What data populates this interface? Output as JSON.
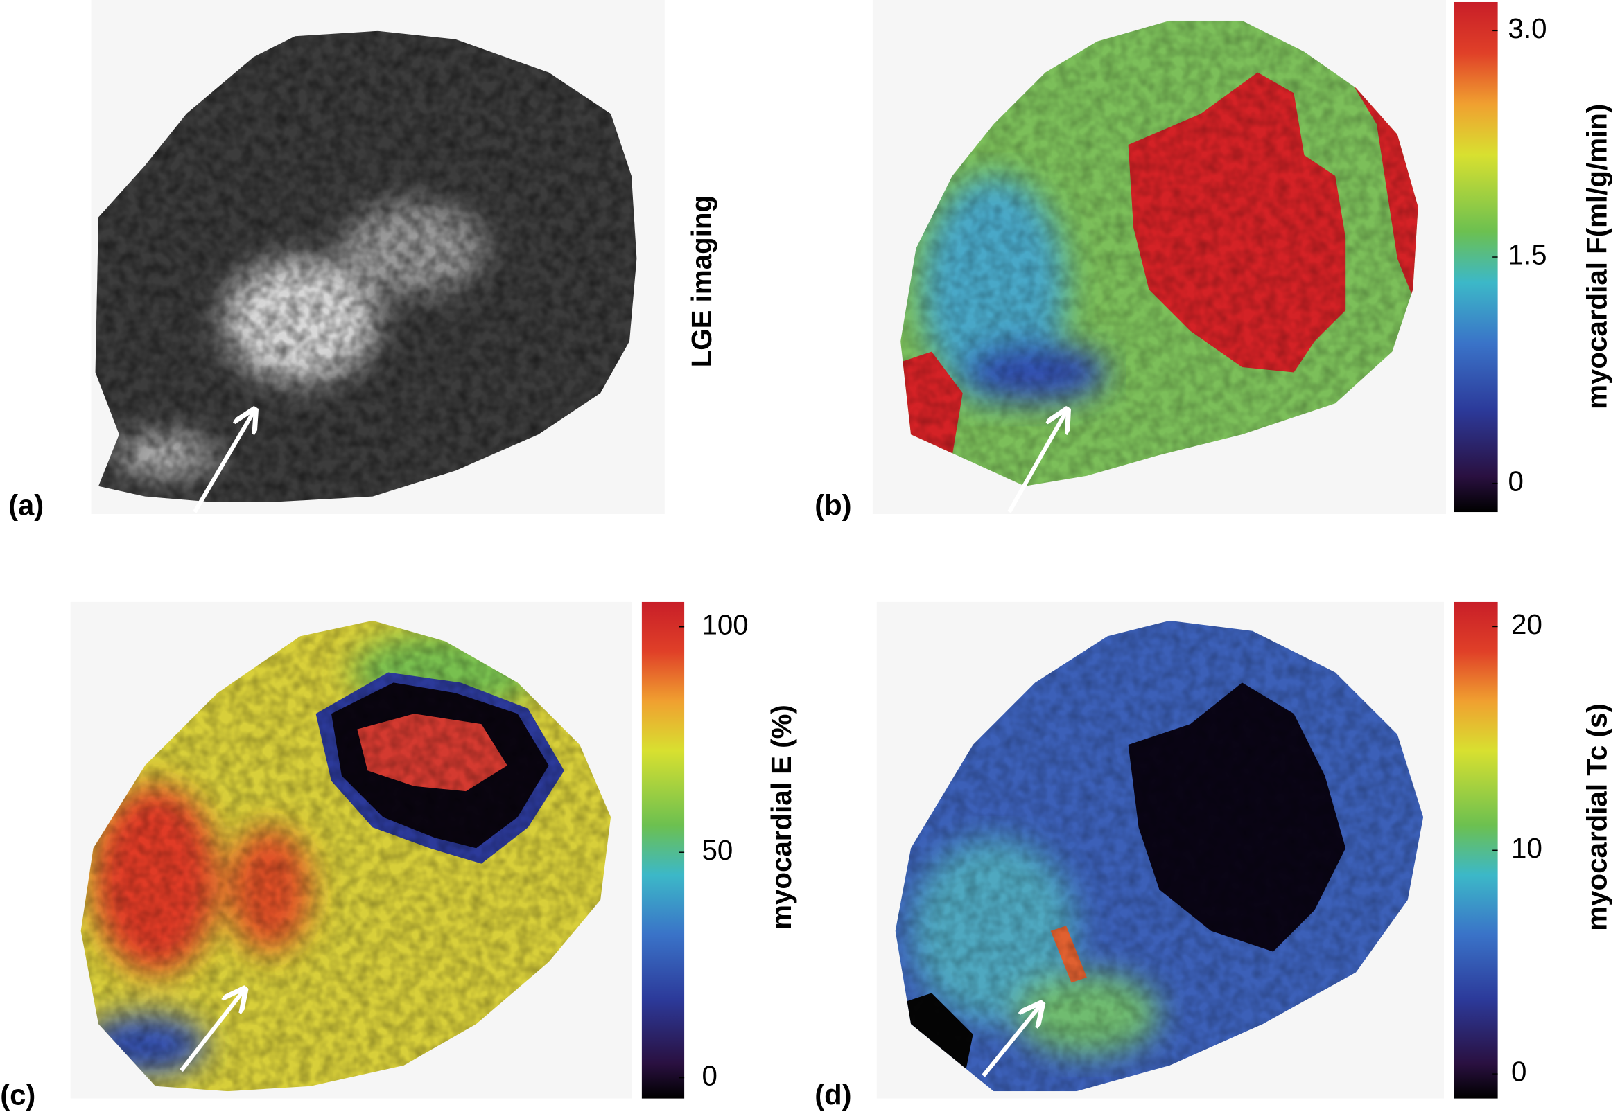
{
  "panels": [
    {
      "label": "(a)",
      "title": "LGE imaging"
    },
    {
      "label": "(b)",
      "colorbar": {
        "label": "myocardial F(ml/g/min)",
        "lim": [
          -0.19,
          3.19
        ],
        "ticks": [
          {
            "value": 3,
            "label": "3.0"
          },
          1.5,
          0
        ]
      }
    },
    {
      "label": "(c)",
      "colorbar": {
        "label": "myocardial E (%)",
        "lim": [
          -4.6,
          105.5
        ],
        "ticks": [
          100,
          50,
          0
        ]
      }
    },
    {
      "label": "(d)",
      "colorbar": {
        "label": "myocardial Tc (s)",
        "lim": [
          -1.1,
          21.1
        ],
        "ticks": [
          20,
          10,
          0
        ]
      }
    }
  ]
}
